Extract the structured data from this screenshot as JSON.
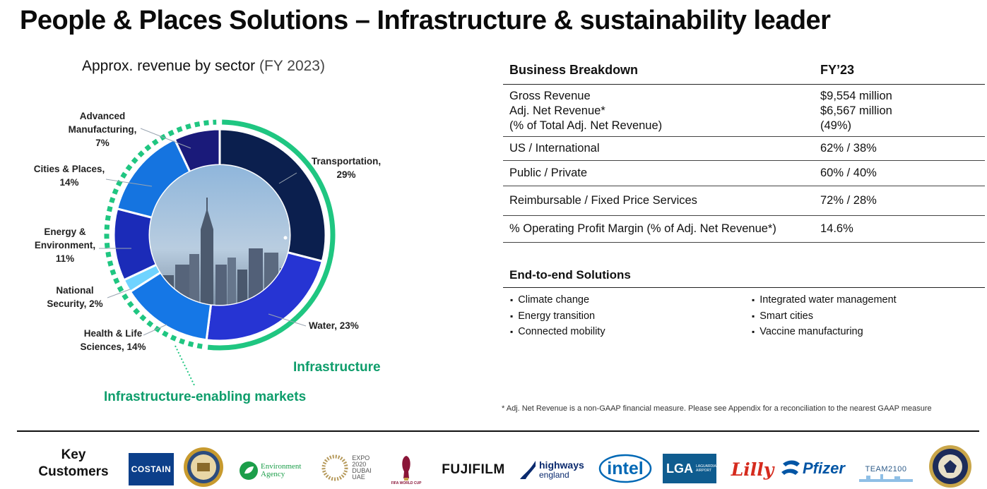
{
  "title": "People & Places Solutions – Infrastructure & sustainability leader",
  "chart_data": {
    "type": "pie",
    "title": "Approx. revenue by sector",
    "subtitle": "(FY 2023)",
    "slices": [
      {
        "name": "Transportation",
        "value": 29,
        "label": "Transportation,",
        "value_label": "29%",
        "color": "#0b1f4e"
      },
      {
        "name": "Water",
        "value": 23,
        "label": "Water, 23%",
        "color": "#2634d3"
      },
      {
        "name": "Health & Life Sciences",
        "value": 14,
        "label": "Health & Life",
        "label2": "Sciences, 14%",
        "color": "#1577e6"
      },
      {
        "name": "National Security",
        "value": 2,
        "label": "National",
        "label2": "Security, 2%",
        "color": "#6fd3ff"
      },
      {
        "name": "Energy & Environment",
        "value": 11,
        "label": "Energy &",
        "label2": "Environment,",
        "label3": "11%",
        "color": "#1b2bb8"
      },
      {
        "name": "Cities & Places",
        "value": 14,
        "label": "Cities & Places,",
        "label2": "14%",
        "color": "#1574e0"
      },
      {
        "name": "Advanced Manufacturing",
        "value": 7,
        "label": "Advanced",
        "label2": "Manufacturing,",
        "label3": "7%",
        "color": "#1a1a7a"
      }
    ],
    "groups": [
      {
        "name": "Infrastructure",
        "style": "solid",
        "color": "#1fc681"
      },
      {
        "name": "Infrastructure-enabling markets",
        "style": "dashed",
        "color": "#1fc681"
      }
    ]
  },
  "table": {
    "header": {
      "label": "Business Breakdown",
      "value": "FY’23"
    },
    "rows": [
      {
        "labels": [
          "Gross Revenue",
          "Adj. Net Revenue*",
          "(% of Total Adj. Net Revenue)"
        ],
        "values": [
          "$9,554 million",
          "$6,567 million",
          "(49%)"
        ]
      },
      {
        "labels": [
          "US / International"
        ],
        "values": [
          "62% / 38%"
        ]
      },
      {
        "labels": [
          "Public / Private"
        ],
        "values": [
          "60% / 40%"
        ]
      },
      {
        "labels": [
          "Reimbursable / Fixed Price Services"
        ],
        "values": [
          "72% / 28%"
        ]
      },
      {
        "labels": [
          "% Operating Profit Margin (% of Adj. Net Revenue*)"
        ],
        "values": [
          "14.6%"
        ]
      }
    ]
  },
  "solutions": {
    "title": "End-to-end Solutions",
    "left": [
      "Climate change",
      "Energy transition",
      "Connected mobility"
    ],
    "right": [
      "Integrated water management",
      "Smart cities",
      "Vaccine manufacturing"
    ]
  },
  "footnote": "* Adj. Net Revenue is a non-GAAP financial measure. Please see Appendix for a reconciliation to the nearest GAAP measure",
  "customers": {
    "label_line1": "Key",
    "label_line2": "Customers",
    "logos": {
      "costain": "COSTAIN",
      "env_agency_1": "Environment",
      "env_agency_2": "Agency",
      "expo_1": "EXPO",
      "expo_2": "2020",
      "expo_3": "DUBAI",
      "expo_4": "UAE",
      "fifa": "FIFA WORLD CUP",
      "fujifilm": "FUJIFILM",
      "highways_1": "highways",
      "highways_2": "england",
      "intel": "intel",
      "lga": "LGA",
      "lga_sub_1": "LAGUARDIA",
      "lga_sub_2": "AIRPORT",
      "lilly": "Lilly",
      "pfizer": "Pfizer",
      "team2100": "TEAM2100"
    }
  },
  "colors": {
    "accent_green": "#1fc681",
    "group_text_green": "#0e9d6b",
    "navy": "#0b1f4e"
  }
}
